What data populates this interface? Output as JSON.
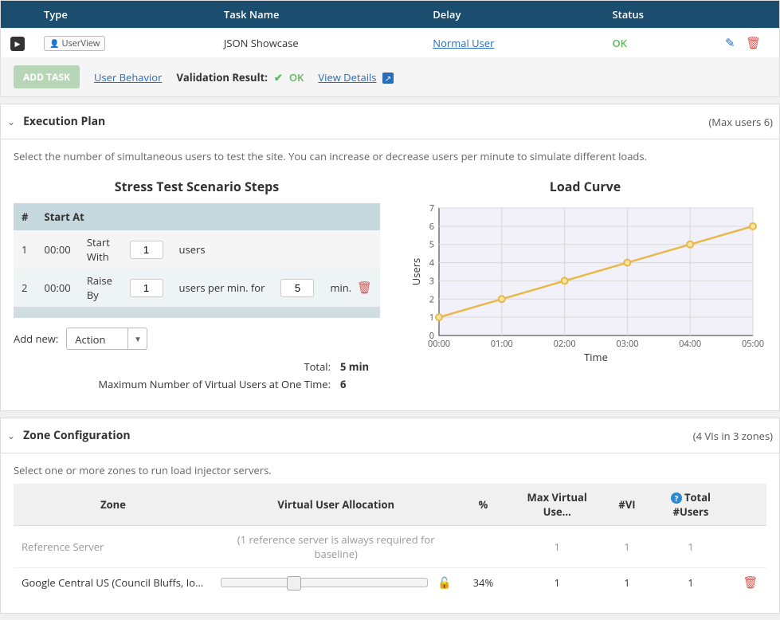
{
  "task_table": {
    "headers": {
      "type": "Type",
      "task_name": "Task Name",
      "delay": "Delay",
      "status": "Status"
    },
    "row": {
      "type_badge": "UserView",
      "task_name": "JSON Showcase",
      "delay": "Normal User",
      "status": "OK"
    }
  },
  "toolbar": {
    "add_task": "ADD TASK",
    "user_behavior": "User Behavior",
    "validation_label": "Validation Result:",
    "validation_status": "OK",
    "view_details": "View Details"
  },
  "exec_plan": {
    "title": "Execution Plan",
    "meta": "(Max users 6)",
    "description": "Select the number of simultaneous users to test the site. You can increase or decrease users per minute to simulate different loads.",
    "steps_title": "Stress Test Scenario Steps",
    "steps_headers": {
      "num": "#",
      "start_at": "Start At"
    },
    "steps": [
      {
        "num": "1",
        "start_at": "00:00",
        "action": "Start With",
        "value": "1",
        "suffix": "users"
      },
      {
        "num": "2",
        "start_at": "00:00",
        "action": "Raise By",
        "value": "1",
        "mid": "users per min. for",
        "value2": "5",
        "suffix2": "min."
      }
    ],
    "addnew_label": "Add new:",
    "addnew_value": "Action",
    "total_label": "Total:",
    "total_value": "5 min",
    "maxvu_label": "Maximum Number of Virtual Users at One Time:",
    "maxvu_value": "6",
    "chart": {
      "title": "Load Curve",
      "type": "line",
      "x_label": "Time",
      "y_label": "Users",
      "x_ticks": [
        "00:00",
        "01:00",
        "02:00",
        "03:00",
        "04:00",
        "05:00"
      ],
      "y_ticks": [
        "0",
        "1",
        "2",
        "3",
        "4",
        "5",
        "6",
        "7"
      ],
      "ylim": [
        0,
        7
      ],
      "points": [
        [
          0,
          1
        ],
        [
          1,
          2
        ],
        [
          2,
          3
        ],
        [
          3,
          4
        ],
        [
          4,
          5
        ],
        [
          5,
          6
        ]
      ],
      "line_color": "#e8b94a",
      "marker_fill": "#f5e7a0",
      "grid_color": "#d8d8d8",
      "background_color": "#f2f0f8",
      "axis_color": "#333333",
      "label_fontsize": 11,
      "title_fontsize": 16
    }
  },
  "zone_config": {
    "title": "Zone Configuration",
    "meta": "(4 VIs in 3 zones)",
    "description": "Select one or more zones to run load injector servers.",
    "headers": {
      "zone": "Zone",
      "alloc": "Virtual User Allocation",
      "pct": "%",
      "maxvu": "Max Virtual Use…",
      "nvi": "#VI",
      "totalusers": "Total #Users"
    },
    "rows": [
      {
        "zone": "Reference Server",
        "alloc_note": "(1 reference server is always required for baseline)",
        "pct": "",
        "maxvu": "1",
        "nvi": "1",
        "total": "1",
        "is_ref": true
      },
      {
        "zone": "Google Central US (Council Bluffs, Io…",
        "alloc_pct": 34,
        "pct": "34%",
        "maxvu": "1",
        "nvi": "1",
        "total": "1",
        "is_ref": false
      }
    ]
  }
}
